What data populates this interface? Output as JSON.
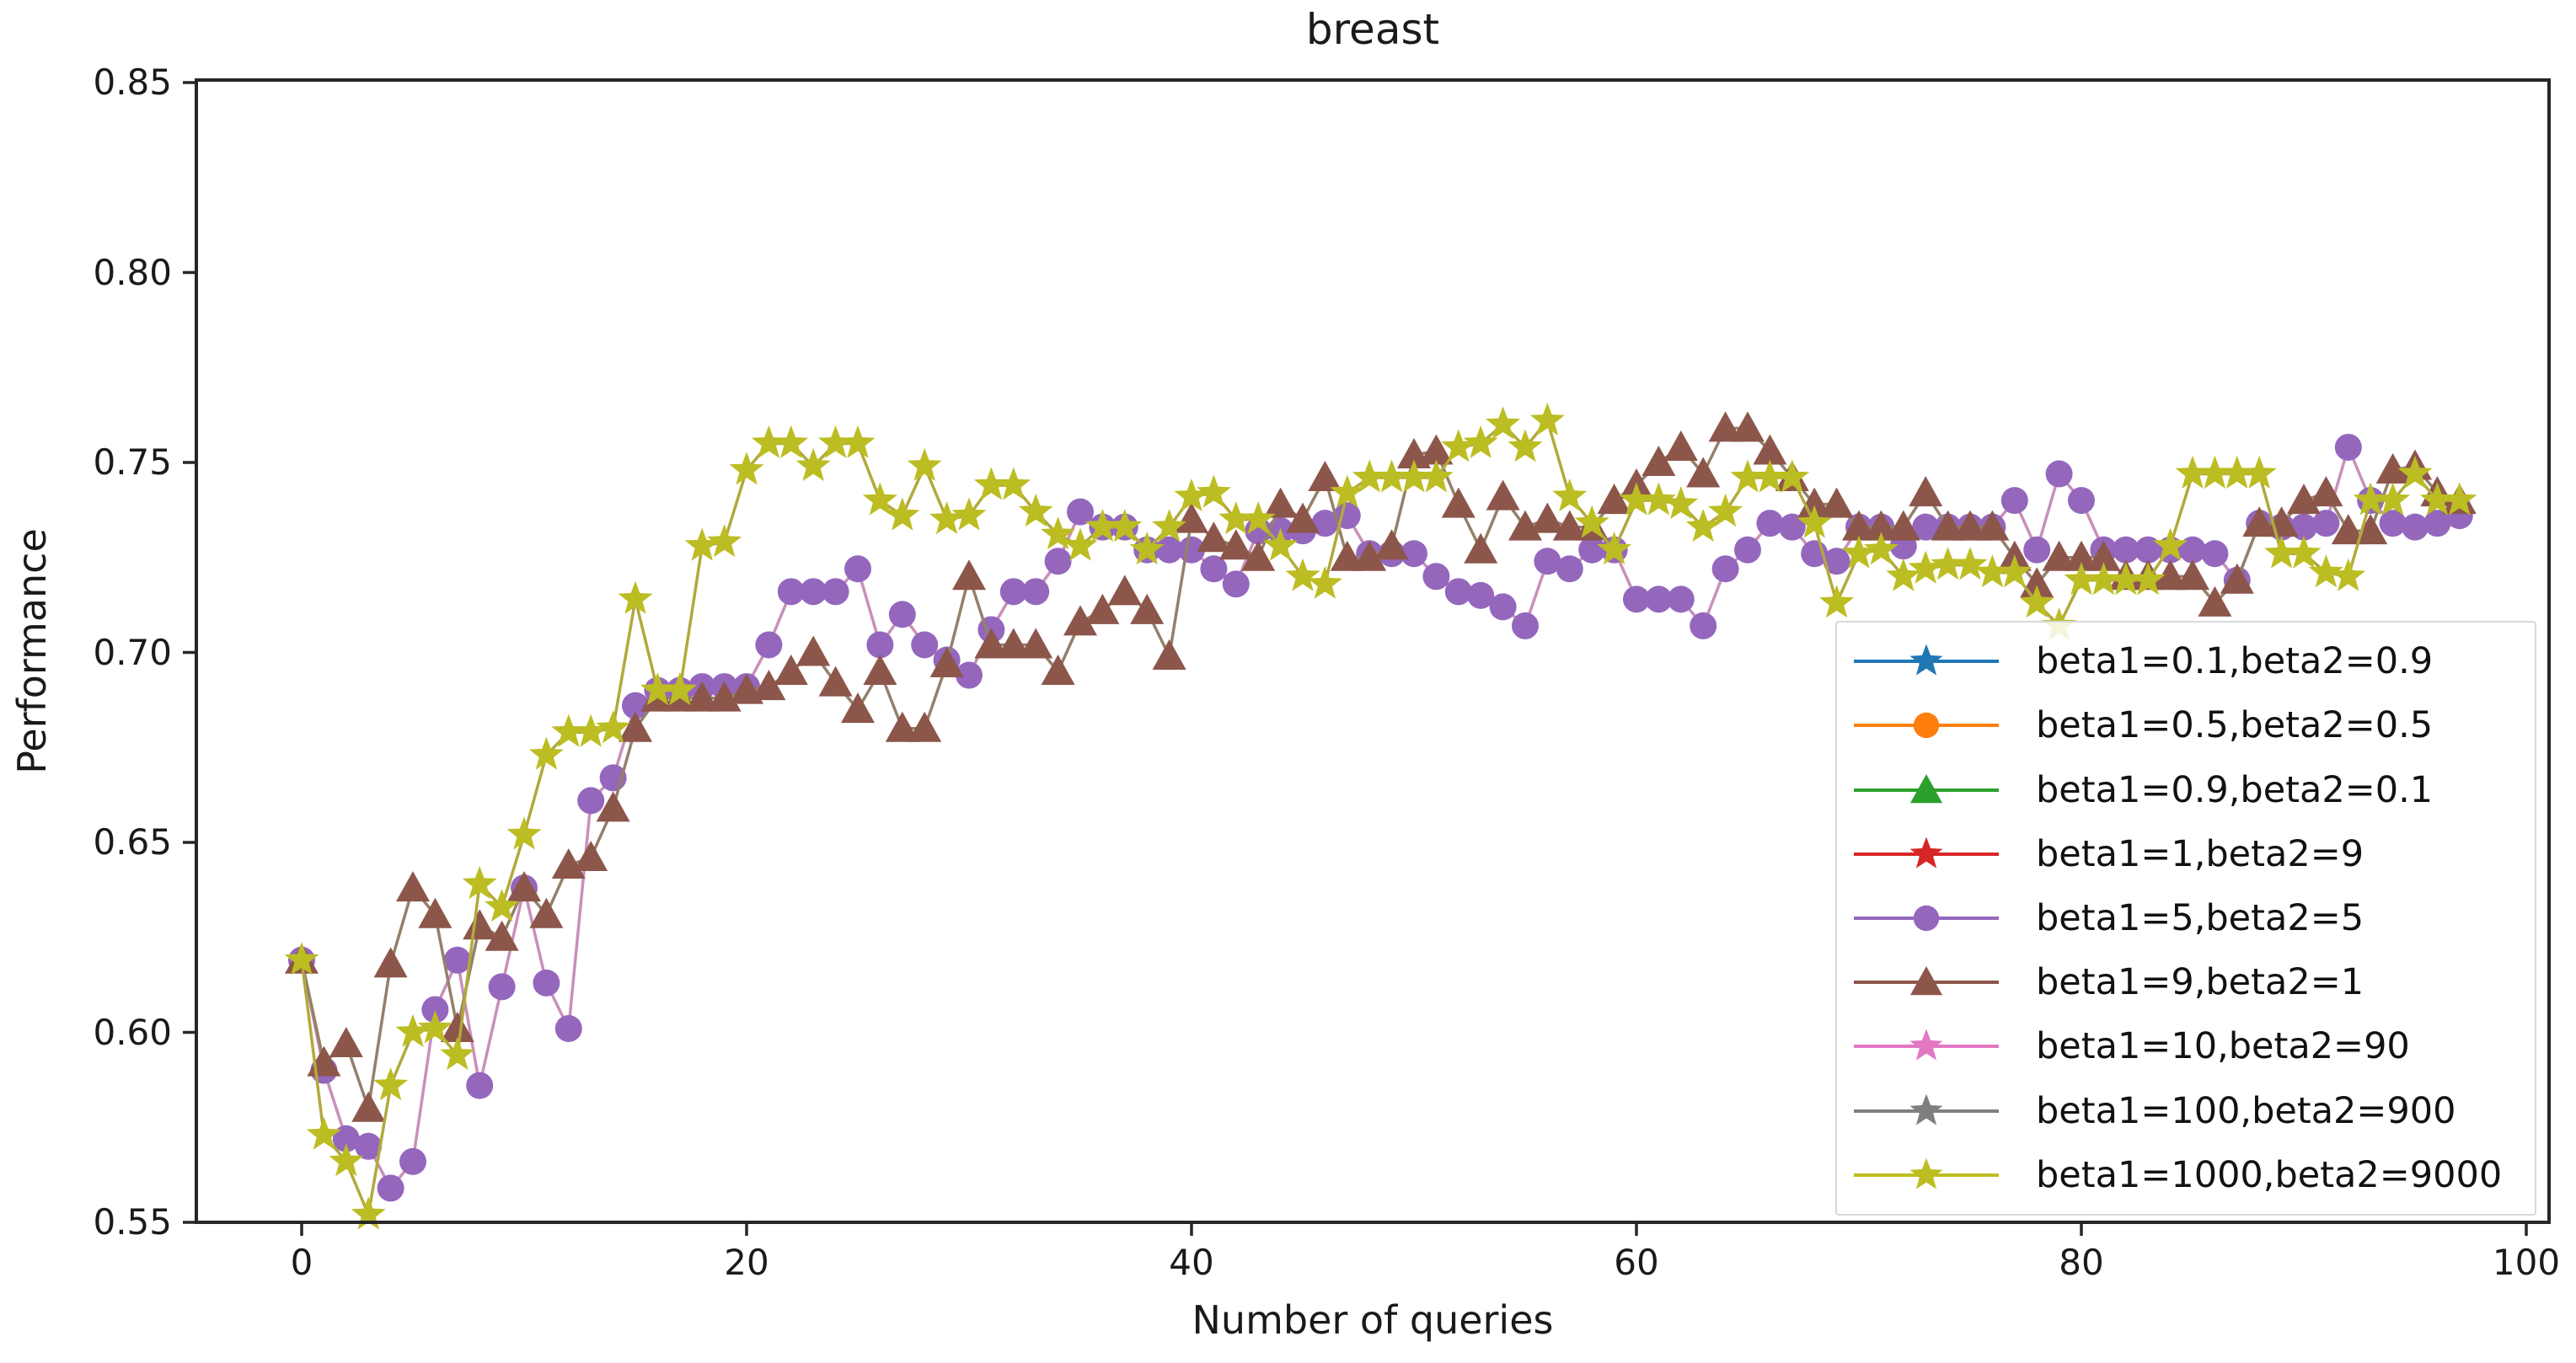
{
  "chart_data": {
    "type": "line",
    "title": "breast",
    "xlabel": "Number of queries",
    "ylabel": "Performance",
    "xlim": [
      -4.7,
      101.4
    ],
    "ylim": [
      0.55,
      0.85
    ],
    "grid": false,
    "legend_position": "center right",
    "xticks": [
      0,
      20,
      40,
      60,
      80,
      100
    ],
    "yticks": [
      0.85,
      0.8,
      0.75,
      0.7,
      0.65,
      0.6,
      0.55
    ],
    "xticklabels": [
      "0",
      "20",
      "40",
      "60",
      "80",
      "100"
    ],
    "yticklabels": [
      "0.85",
      "0.80",
      "0.75",
      "0.70",
      "0.65",
      "0.60",
      "0.55"
    ],
    "legend": [
      {
        "label": "beta1=0.1,beta2=0.9",
        "color": "#1f77b4",
        "marker": "star",
        "curve_visible": false
      },
      {
        "label": "beta1=0.5,beta2=0.5",
        "color": "#ff7f0e",
        "marker": "circle",
        "curve_visible": false
      },
      {
        "label": "beta1=0.9,beta2=0.1",
        "color": "#2ca02c",
        "marker": "triangle",
        "curve_visible": false
      },
      {
        "label": "beta1=1,beta2=9",
        "color": "#d62728",
        "marker": "star",
        "curve_visible": false
      },
      {
        "label": "beta1=5,beta2=5",
        "color": "#9467bd",
        "marker": "circle",
        "curve_visible": true
      },
      {
        "label": "beta1=9,beta2=1",
        "color": "#8c564b",
        "marker": "triangle",
        "curve_visible": true
      },
      {
        "label": "beta1=10,beta2=90",
        "color": "#e377c2",
        "marker": "star",
        "curve_visible": false
      },
      {
        "label": "beta1=100,beta2=900",
        "color": "#7f7f7f",
        "marker": "star",
        "curve_visible": false
      },
      {
        "label": "beta1=1000,beta2=9000",
        "color": "#bcbd22",
        "marker": "star",
        "curve_visible": true
      }
    ],
    "x": [
      0,
      1,
      2,
      3,
      4,
      5,
      6,
      7,
      8,
      9,
      10,
      11,
      12,
      13,
      14,
      15,
      16,
      17,
      18,
      19,
      20,
      21,
      22,
      23,
      24,
      25,
      26,
      27,
      28,
      29,
      30,
      31,
      32,
      33,
      34,
      35,
      36,
      37,
      38,
      39,
      40,
      41,
      42,
      43,
      44,
      45,
      46,
      47,
      48,
      49,
      50,
      51,
      52,
      53,
      54,
      55,
      56,
      57,
      58,
      59,
      60,
      61,
      62,
      63,
      64,
      65,
      66,
      67,
      68,
      69,
      70,
      71,
      72,
      73,
      74,
      75,
      76,
      77,
      78,
      79,
      80,
      81,
      82,
      83,
      84,
      85,
      86,
      87,
      88,
      89,
      90,
      91,
      92,
      93,
      94,
      95,
      96,
      97
    ],
    "series": [
      {
        "name": "beta1=5,beta2=5",
        "marker": "circle",
        "marker_color": "#9467bd",
        "line_color": "#c98fba",
        "values": [
          0.619,
          0.59,
          0.572,
          0.57,
          0.559,
          0.566,
          0.606,
          0.619,
          0.586,
          0.612,
          0.638,
          0.613,
          0.601,
          0.661,
          0.667,
          0.686,
          0.69,
          0.69,
          0.691,
          0.691,
          0.691,
          0.702,
          0.716,
          0.716,
          0.716,
          0.722,
          0.702,
          0.71,
          0.702,
          0.698,
          0.694,
          0.706,
          0.716,
          0.716,
          0.724,
          0.737,
          0.733,
          0.733,
          0.727,
          0.727,
          0.727,
          0.722,
          0.718,
          0.732,
          0.732,
          0.732,
          0.734,
          0.736,
          0.726,
          0.726,
          0.726,
          0.72,
          0.716,
          0.715,
          0.712,
          0.707,
          0.724,
          0.722,
          0.727,
          0.727,
          0.714,
          0.714,
          0.714,
          0.707,
          0.722,
          0.727,
          0.734,
          0.733,
          0.726,
          0.724,
          0.733,
          0.733,
          0.728,
          0.733,
          0.733,
          0.733,
          0.733,
          0.74,
          0.727,
          0.747,
          0.74,
          0.727,
          0.727,
          0.727,
          0.727,
          0.727,
          0.726,
          0.719,
          0.734,
          0.733,
          0.733,
          0.734,
          0.754,
          0.74,
          0.734,
          0.733,
          0.734,
          0.736
        ]
      },
      {
        "name": "beta1=9,beta2=1",
        "marker": "triangle",
        "marker_color": "#8c564b",
        "line_color": "#94806a",
        "values": [
          0.619,
          0.592,
          0.597,
          0.58,
          0.618,
          0.638,
          0.631,
          0.601,
          0.628,
          0.625,
          0.638,
          0.631,
          0.644,
          0.646,
          0.659,
          0.68,
          0.688,
          0.688,
          0.688,
          0.688,
          0.69,
          0.691,
          0.695,
          0.7,
          0.692,
          0.685,
          0.695,
          0.68,
          0.68,
          0.697,
          0.72,
          0.702,
          0.702,
          0.702,
          0.695,
          0.708,
          0.711,
          0.716,
          0.711,
          0.699,
          0.735,
          0.73,
          0.728,
          0.725,
          0.739,
          0.735,
          0.746,
          0.725,
          0.725,
          0.728,
          0.752,
          0.753,
          0.739,
          0.727,
          0.741,
          0.733,
          0.735,
          0.733,
          0.733,
          0.74,
          0.744,
          0.75,
          0.754,
          0.747,
          0.759,
          0.759,
          0.753,
          0.746,
          0.739,
          0.739,
          0.733,
          0.733,
          0.733,
          0.742,
          0.733,
          0.733,
          0.733,
          0.725,
          0.718,
          0.725,
          0.725,
          0.725,
          0.72,
          0.72,
          0.72,
          0.72,
          0.713,
          0.719,
          0.734,
          0.734,
          0.74,
          0.742,
          0.732,
          0.732,
          0.748,
          0.749,
          0.742,
          0.74
        ]
      },
      {
        "name": "beta1=1000,beta2=9000",
        "marker": "star",
        "marker_color": "#bcbd22",
        "line_color": "#b1a93c",
        "values": [
          0.619,
          0.573,
          0.566,
          0.552,
          0.586,
          0.6,
          0.601,
          0.594,
          0.639,
          0.633,
          0.652,
          0.673,
          0.679,
          0.679,
          0.68,
          0.714,
          0.69,
          0.69,
          0.728,
          0.729,
          0.748,
          0.755,
          0.755,
          0.749,
          0.755,
          0.755,
          0.74,
          0.736,
          0.749,
          0.735,
          0.736,
          0.744,
          0.744,
          0.737,
          0.731,
          0.728,
          0.733,
          0.733,
          0.727,
          0.733,
          0.741,
          0.742,
          0.735,
          0.735,
          0.728,
          0.72,
          0.718,
          0.742,
          0.746,
          0.746,
          0.746,
          0.746,
          0.754,
          0.755,
          0.76,
          0.754,
          0.761,
          0.741,
          0.734,
          0.727,
          0.74,
          0.74,
          0.739,
          0.733,
          0.737,
          0.746,
          0.746,
          0.746,
          0.734,
          0.713,
          0.726,
          0.727,
          0.72,
          0.722,
          0.723,
          0.723,
          0.721,
          0.721,
          0.713,
          0.707,
          0.719,
          0.719,
          0.719,
          0.719,
          0.728,
          0.747,
          0.747,
          0.747,
          0.747,
          0.726,
          0.726,
          0.721,
          0.72,
          0.74,
          0.74,
          0.747,
          0.74,
          0.74
        ]
      }
    ]
  }
}
